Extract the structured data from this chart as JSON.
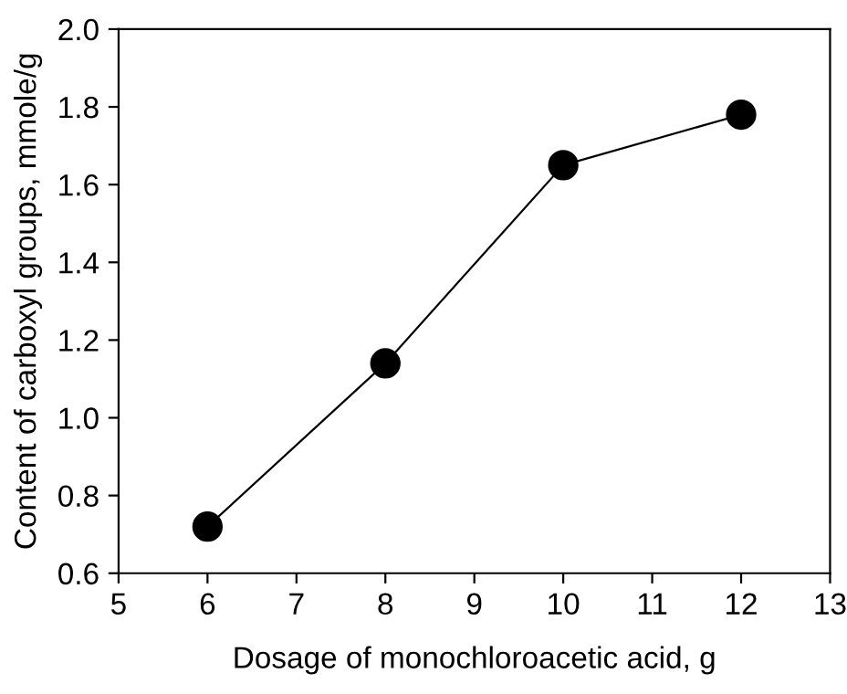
{
  "chart_data": {
    "type": "line",
    "xlabel": "Dosage of monochloroacetic acid, g",
    "ylabel": "Content of carboxyl groups, mmole/g",
    "x": [
      6,
      8,
      10,
      12
    ],
    "series": [
      {
        "color": "#000000",
        "values": [
          0.72,
          1.14,
          1.65,
          1.78
        ]
      }
    ],
    "xlim": [
      5,
      13
    ],
    "xticks": [
      5,
      6,
      7,
      8,
      9,
      10,
      11,
      12,
      13
    ],
    "ylim": [
      0.6,
      2.0
    ],
    "yticks": [
      {
        "value": 0.6,
        "label": "0.6"
      },
      {
        "value": 0.8,
        "label": "0.8"
      },
      {
        "value": 1.0,
        "label": "1.0"
      },
      {
        "value": 1.2,
        "label": "1.2"
      },
      {
        "value": 1.4,
        "label": "1.4"
      },
      {
        "value": 1.6,
        "label": "1.6"
      },
      {
        "value": 1.8,
        "label": "1.8"
      },
      {
        "value": 2.0,
        "label": "2.0"
      }
    ],
    "marker": "circle",
    "line_style": "solid",
    "grid": false,
    "legend": false
  }
}
